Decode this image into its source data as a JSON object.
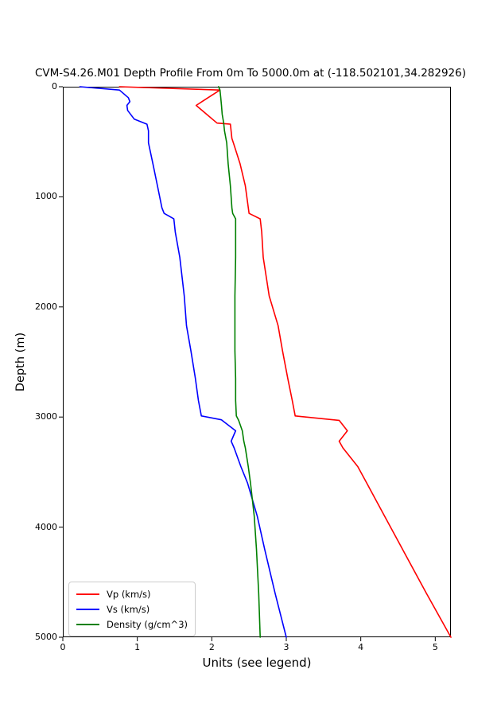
{
  "chart_data": {
    "type": "line",
    "title": "CVM-S4.26.M01 Depth Profile From 0m To 5000.0m at (-118.502101,34.282926)",
    "xlabel": "Units (see legend)",
    "ylabel": "Depth (m)",
    "xlim": [
      0,
      5.21
    ],
    "ylim": [
      5000,
      0
    ],
    "x_ticks": [
      0,
      1,
      2,
      3,
      4,
      5
    ],
    "y_ticks": [
      0,
      1000,
      2000,
      3000,
      4000,
      5000
    ],
    "grid": false,
    "background": "#ffffff",
    "axis_color": "#000000",
    "legend_position": "lower left",
    "orientation": "depth-profile (y increases downward)",
    "series": [
      {
        "name": "Vp (km/s)",
        "color": "#ff0000",
        "points": [
          [
            0.76,
            0
          ],
          [
            2.11,
            30
          ],
          [
            1.95,
            100
          ],
          [
            1.79,
            170
          ],
          [
            1.93,
            250
          ],
          [
            2.07,
            330
          ],
          [
            2.25,
            340
          ],
          [
            2.27,
            470
          ],
          [
            2.29,
            510
          ],
          [
            2.38,
            700
          ],
          [
            2.45,
            900
          ],
          [
            2.5,
            1150
          ],
          [
            2.65,
            1200
          ],
          [
            2.67,
            1320
          ],
          [
            2.69,
            1550
          ],
          [
            2.77,
            1900
          ],
          [
            2.89,
            2170
          ],
          [
            2.95,
            2400
          ],
          [
            3.02,
            2650
          ],
          [
            3.08,
            2850
          ],
          [
            3.12,
            2990
          ],
          [
            3.71,
            3030
          ],
          [
            3.82,
            3125
          ],
          [
            3.71,
            3220
          ],
          [
            3.76,
            3280
          ],
          [
            3.96,
            3450
          ],
          [
            4.08,
            3600
          ],
          [
            4.32,
            3900
          ],
          [
            4.56,
            4200
          ],
          [
            4.88,
            4600
          ],
          [
            5.21,
            5000
          ]
        ]
      },
      {
        "name": "Vs (km/s)",
        "color": "#0000ff",
        "points": [
          [
            0.23,
            0
          ],
          [
            0.76,
            30
          ],
          [
            0.88,
            100
          ],
          [
            0.9,
            135
          ],
          [
            0.86,
            170
          ],
          [
            0.87,
            215
          ],
          [
            0.96,
            295
          ],
          [
            1.13,
            340
          ],
          [
            1.15,
            400
          ],
          [
            1.15,
            510
          ],
          [
            1.21,
            700
          ],
          [
            1.27,
            900
          ],
          [
            1.33,
            1100
          ],
          [
            1.36,
            1150
          ],
          [
            1.49,
            1200
          ],
          [
            1.51,
            1320
          ],
          [
            1.57,
            1550
          ],
          [
            1.63,
            1900
          ],
          [
            1.66,
            2170
          ],
          [
            1.72,
            2400
          ],
          [
            1.78,
            2650
          ],
          [
            1.82,
            2850
          ],
          [
            1.86,
            2990
          ],
          [
            2.13,
            3025
          ],
          [
            2.32,
            3125
          ],
          [
            2.26,
            3220
          ],
          [
            2.3,
            3280
          ],
          [
            2.39,
            3450
          ],
          [
            2.48,
            3600
          ],
          [
            2.61,
            3900
          ],
          [
            2.71,
            4200
          ],
          [
            2.85,
            4600
          ],
          [
            3.0,
            5000
          ]
        ]
      },
      {
        "name": "Density (g/cm^3)",
        "color": "#008000",
        "points": [
          [
            2.09,
            0
          ],
          [
            2.11,
            30
          ],
          [
            2.12,
            100
          ],
          [
            2.13,
            170
          ],
          [
            2.14,
            250
          ],
          [
            2.16,
            330
          ],
          [
            2.17,
            400
          ],
          [
            2.2,
            510
          ],
          [
            2.22,
            700
          ],
          [
            2.25,
            900
          ],
          [
            2.27,
            1100
          ],
          [
            2.28,
            1150
          ],
          [
            2.32,
            1200
          ],
          [
            2.32,
            1550
          ],
          [
            2.31,
            1900
          ],
          [
            2.31,
            2170
          ],
          [
            2.31,
            2400
          ],
          [
            2.32,
            2650
          ],
          [
            2.32,
            2850
          ],
          [
            2.33,
            2990
          ],
          [
            2.36,
            3030
          ],
          [
            2.41,
            3125
          ],
          [
            2.43,
            3220
          ],
          [
            2.45,
            3280
          ],
          [
            2.49,
            3450
          ],
          [
            2.52,
            3600
          ],
          [
            2.57,
            3900
          ],
          [
            2.6,
            4200
          ],
          [
            2.63,
            4600
          ],
          [
            2.65,
            5000
          ]
        ]
      }
    ]
  }
}
